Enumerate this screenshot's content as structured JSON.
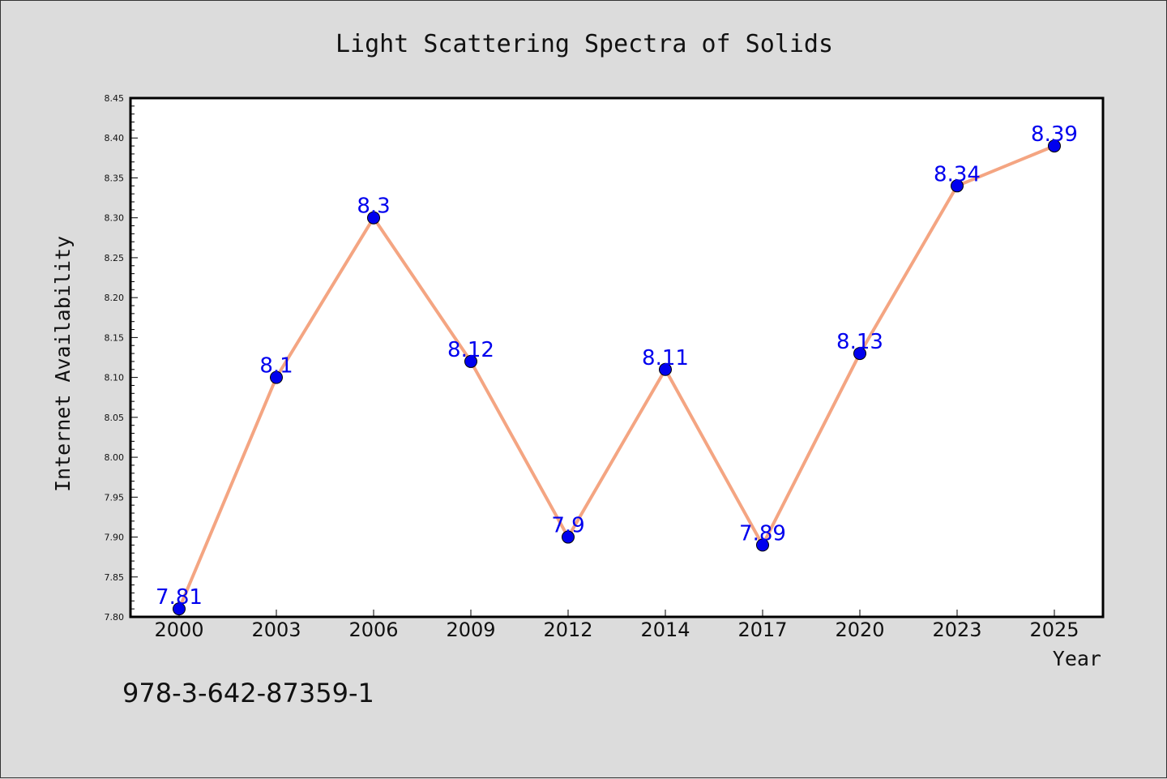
{
  "chart_data": {
    "type": "line",
    "title": "Light Scattering Spectra of Solids",
    "xlabel": "Year",
    "ylabel": "Internet Availability",
    "categories": [
      "2000",
      "2003",
      "2006",
      "2009",
      "2012",
      "2014",
      "2017",
      "2020",
      "2023",
      "2025"
    ],
    "series": [
      {
        "values": [
          7.81,
          8.1,
          8.3,
          8.12,
          7.9,
          8.11,
          7.89,
          8.13,
          8.34,
          8.39
        ],
        "labels": [
          "7.81",
          "8.1",
          "8.3",
          "8.12",
          "7.9",
          "8.11",
          "7.89",
          "8.13",
          "8.34",
          "8.39"
        ],
        "line_color": "#f4a582",
        "marker_color": "#0000ee",
        "label_color": "#0000ee"
      }
    ],
    "ylim": [
      7.8,
      8.45
    ],
    "yticks": [
      "7.80",
      "7.85",
      "7.90",
      "7.95",
      "8.00",
      "8.05",
      "8.10",
      "8.15",
      "8.20",
      "8.25",
      "8.30",
      "8.35",
      "8.40",
      "8.45"
    ],
    "grid": false,
    "legend": "none"
  },
  "footnote": "978-3-642-87359-1",
  "colors": {
    "background": "#dcdcdc",
    "plot_background": "#ffffff",
    "axis": "#000000"
  }
}
